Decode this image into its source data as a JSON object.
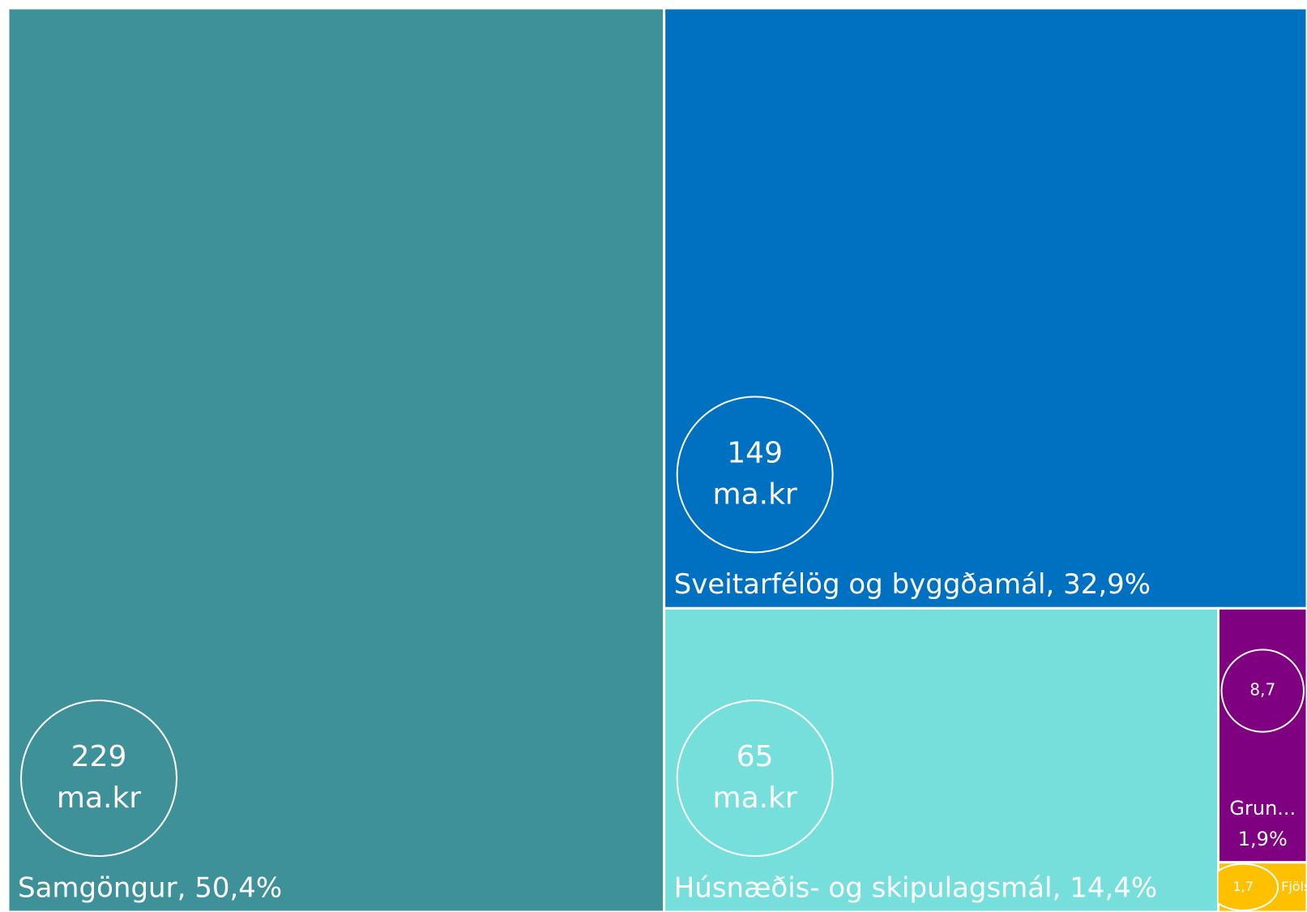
{
  "chart_data": {
    "type": "treemap",
    "unit": "ma.kr",
    "categories": [
      [
        "Samgöngur, 50,4%"
      ],
      [
        "Sveitarfélög og byggðamál, 32,9%"
      ],
      [
        "Húsnæðis- og skipulagsmál, 14,4%"
      ],
      [
        "Grun...",
        "1,9%"
      ],
      [
        "Fjölsky..."
      ]
    ],
    "values": [
      229,
      149,
      65,
      8.7,
      1.7
    ],
    "value_labels": [
      "229",
      "149",
      "65",
      "8,7",
      "1,7"
    ],
    "colors": [
      "#3f9199",
      "#0070c0",
      "#76dfdc",
      "#7f0080",
      "#ffc000"
    ]
  }
}
